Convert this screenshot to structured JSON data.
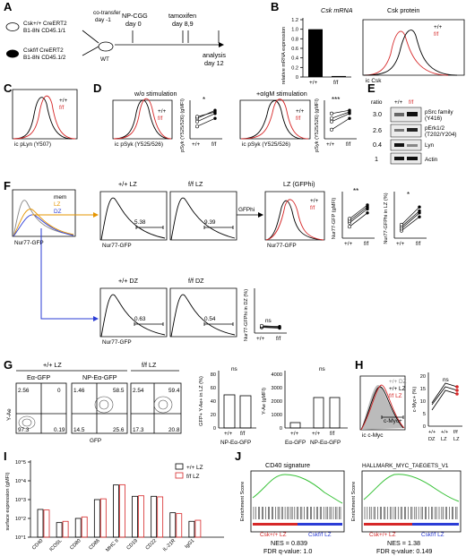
{
  "panels": {
    "A": {
      "letter": "A",
      "donor1_line1": "Csk+/+ CreERT2",
      "donor1_line2": "B1-8hi CD45.1/1",
      "donor2_line1": "Cskf/f CreERT2",
      "donor2_line2": "B1-8hi CD45.1/2",
      "cotransfer": "co-transfer",
      "cotransfer_day": "day -1",
      "recipient": "WT",
      "np_cgg": "NP-CGG",
      "np_day": "day 0",
      "tamoxifen": "tamoxifen",
      "tam_day": "day 8,9",
      "analysis": "analysis",
      "analysis_day": "day 12"
    },
    "B": {
      "letter": "B",
      "mrna_title": "Csk mRNA",
      "ylabel": "relative mRNA expression",
      "yticks": [
        "0",
        "0.2",
        "0.4",
        "0.6",
        "0.8",
        "1.0",
        "1.2"
      ],
      "xcats": [
        "+/+",
        "f/f"
      ],
      "protein_title": "Csk protein",
      "legend_wt": "+/+",
      "legend_ff": "f/f",
      "xlabel": "ic Csk"
    },
    "C": {
      "letter": "C",
      "legend_wt": "+/+",
      "legend_ff": "f/f",
      "xlabel": "ic pLyn (Y507)"
    },
    "D": {
      "letter": "D",
      "title1": "w/o stimulation",
      "title2": "+αIgM stimulation",
      "legend_wt": "+/+",
      "legend_ff": "f/f",
      "xlabel": "ic pSyk (Y525/526)",
      "ylabel": "pSyk (Y525/526) (gMFI)",
      "sig1": "*",
      "sig2": "***",
      "xcats": [
        "+/+",
        "f/f"
      ]
    },
    "E": {
      "letter": "E",
      "ratio": "ratio",
      "col_wt": "+/+",
      "col_ff": "f/f",
      "rows": [
        {
          "ratio": "3.0",
          "label1": "pSrc family",
          "label2": "(Y416)"
        },
        {
          "ratio": "2.6",
          "label1": "pErk1/2",
          "label2": "(T202/Y204)"
        },
        {
          "ratio": "0.4",
          "label1": "Lyn",
          "label2": ""
        },
        {
          "ratio": "1",
          "label1": "Actin",
          "label2": ""
        }
      ]
    },
    "F": {
      "letter": "F",
      "legend": [
        "mem",
        "LZ",
        "DZ"
      ],
      "lz_wt_title": "+/+ LZ",
      "lz_ff_title": "f/f LZ",
      "gfp_title": "LZ (GFPhi)",
      "gfp_hi": "GFPhi",
      "lz_wt_pct": "5.38",
      "lz_ff_pct": "9.39",
      "dz_wt_title": "+/+ DZ",
      "dz_ff_title": "f/f DZ",
      "dz_wt_pct": "0.63",
      "dz_ff_pct": "0.54",
      "xlabel": "Nur77-GFP",
      "gmfi_label": "Nur77-GFP (gMFI)",
      "gfphi_lz_label": "Nur77-GFPhi in LZ (%)",
      "gfphi_dz_label": "Nur77-GFPhi in DZ (%)",
      "sig_gmfi": "**",
      "sig_lz": "*",
      "sig_dz": "ns",
      "legend_wt": "+/+",
      "legend_ff": "f/f",
      "xcats": [
        "+/+",
        "f/f"
      ]
    },
    "G": {
      "letter": "G",
      "group_wt": "+/+ LZ",
      "group_ff": "f/f LZ",
      "plot1": "Eα-GFP",
      "plot2": "NP-Eα-GFP",
      "yaxis": "Y-Ae",
      "xaxis": "GFP",
      "p1_q": [
        "2.56",
        "0",
        "97.3",
        "0.19"
      ],
      "p2_q": [
        "1.46",
        "58.5",
        "14.5",
        "25.6"
      ],
      "p3_q": [
        "2.54",
        "59.4",
        "17.3",
        "20.8"
      ],
      "bar1_ylabel": "GFP+ Y-Ae+ in LZ (%)",
      "bar1_yticks": [
        "0",
        "20",
        "40",
        "60",
        "80"
      ],
      "bar1_x": "NP-Eα-GFP",
      "bar2_ylabel": "Y-Ae (gMFI)",
      "bar2_yticks": [
        "0",
        "1000",
        "2000",
        "3000",
        "4000"
      ],
      "bar2_x": [
        "Eα-GFP",
        "NP-Eα-GFP"
      ],
      "sig": "ns",
      "xcats": [
        "+/+",
        "f/f"
      ]
    },
    "H": {
      "letter": "H",
      "legend": [
        "+/+ DZ",
        "+/+ LZ",
        "f/f LZ"
      ],
      "gate": "c-Myc+",
      "xlabel": "ic c-Myc",
      "ylabel": "c-Myc+ (%)",
      "yticks": [
        "0",
        "5",
        "10",
        "15",
        "20"
      ],
      "sig": "ns",
      "xcats": [
        "+/+",
        "+/+",
        "f/f"
      ],
      "xcats2": [
        "DZ",
        "LZ",
        "LZ"
      ]
    },
    "I": {
      "letter": "I",
      "ylabel": "surface expression (gMFI)",
      "yticks": [
        "10^1",
        "10^2",
        "10^3",
        "10^4",
        "10^5"
      ],
      "legend": [
        "+/+ LZ",
        "f/f LZ"
      ],
      "categories": [
        "CD40",
        "ICOSL",
        "CD80",
        "CD86",
        "MHC II",
        "CD19",
        "CD22",
        "IL-21R",
        "IgG1"
      ]
    },
    "J": {
      "letter": "J",
      "gsea1_title": "CD40 signature",
      "gsea2_title": "HALLMARK_MYC_TAEGETS_V1",
      "ylabel": "Enrichment Score",
      "left": "Csk+/+ LZ",
      "right": "Cskf/f LZ",
      "nes1": "NES = 0.839",
      "fdr1": "FDR q-value: 1.0",
      "nes2": "NES = 1.38",
      "fdr2": "FDR q-value: 0.149"
    }
  },
  "chart_data": [
    {
      "type": "bar",
      "title": "Csk mRNA",
      "categories": [
        "+/+",
        "f/f"
      ],
      "values": [
        1.0,
        0.02
      ],
      "ylim": [
        0,
        1.2
      ],
      "ylabel": "relative mRNA expression"
    },
    {
      "type": "line",
      "title": "w/o stimulation",
      "xlabel": "",
      "ylabel": "pSyk (Y525/526) (gMFI)",
      "categories": [
        "+/+",
        "f/f"
      ],
      "series": [
        {
          "values": [
            0.3,
            0.55
          ]
        },
        {
          "values": [
            0.45,
            0.7
          ]
        },
        {
          "values": [
            0.55,
            0.8
          ]
        },
        {
          "values": [
            0.6,
            0.75
          ]
        }
      ]
    },
    {
      "type": "line",
      "title": "+αIgM stimulation",
      "ylabel": "pSyk (Y525/526) (gMFI)",
      "categories": [
        "+/+",
        "f/f"
      ],
      "series": [
        {
          "values": [
            0.2,
            0.55
          ]
        },
        {
          "values": [
            0.45,
            0.7
          ]
        },
        {
          "values": [
            0.55,
            0.75
          ]
        },
        {
          "values": [
            0.7,
            0.8
          ]
        }
      ]
    },
    {
      "type": "bar",
      "title": "surface expression",
      "ylabel": "surface expression (gMFI)",
      "categories": [
        "CD40",
        "ICOSL",
        "CD80",
        "CD86",
        "MHC II",
        "CD19",
        "CD22",
        "IL-21R",
        "IgG1"
      ],
      "series": [
        {
          "name": "+/+ LZ",
          "values": [
            300,
            60,
            100,
            1000,
            6000,
            1500,
            1500,
            200,
            70
          ]
        },
        {
          "name": "f/f LZ",
          "values": [
            280,
            70,
            120,
            1100,
            6200,
            1600,
            1400,
            180,
            80
          ]
        }
      ]
    }
  ]
}
